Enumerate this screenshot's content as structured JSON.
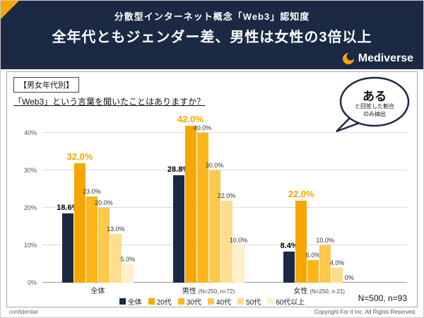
{
  "colors": {
    "header_bg": "#1b2944",
    "accent_orange": "#f7a600",
    "panel_border": "#a6a6a6"
  },
  "header": {
    "subtitle": "分散型インターネット概念「Web3」認知度",
    "title": "全年代ともジェンダー差、男性は女性の3倍以上",
    "brand": "Mediverse"
  },
  "content": {
    "category_box": "【男女年代別】",
    "question": "「Web3」という言葉を聞いたことはありますか？",
    "callout": {
      "big": "ある",
      "small1": "と回答した割合",
      "small2": "のみ抽出"
    },
    "sample_note": "N=500, n=93"
  },
  "chart_data": {
    "type": "bar",
    "title": "「Web3」という言葉を聞いたことはありますか？",
    "annotation": "ある と回答した割合のみ抽出",
    "categories": [
      "全体",
      "男性",
      "女性"
    ],
    "group_sublabels": [
      "",
      "(N=250, n=72)",
      "(N=250, n-21)"
    ],
    "series": [
      {
        "name": "全体",
        "color": "#1b2944",
        "values": [
          18.6,
          28.8,
          8.4
        ]
      },
      {
        "name": "20代",
        "color": "#f7a600",
        "values": [
          32.0,
          42.0,
          22.0
        ]
      },
      {
        "name": "30代",
        "color": "#fbb61c",
        "values": [
          23.0,
          40.0,
          6.0
        ]
      },
      {
        "name": "40代",
        "color": "#fcc94e",
        "values": [
          20.0,
          30.0,
          10.0
        ]
      },
      {
        "name": "50代",
        "color": "#fedd8f",
        "values": [
          13.0,
          22.0,
          4.0
        ]
      },
      {
        "name": "60代以上",
        "color": "#fff0c8",
        "values": [
          5.0,
          10.0,
          0
        ]
      }
    ],
    "value_labels": [
      [
        "18.6%",
        "32.0%",
        "23.0%",
        "20.0%",
        "13.0%",
        "5.0%"
      ],
      [
        "28.8%",
        "42.0%",
        "40.0%",
        "30.0%",
        "22.0%",
        "10.0%"
      ],
      [
        "8.4%",
        "22.0%",
        "6.0%",
        "10.0%",
        "4.0%",
        "0%"
      ]
    ],
    "ylim": [
      0,
      45
    ],
    "gridlines": [
      0,
      10,
      20,
      30,
      40
    ],
    "bold_series_index": 0,
    "highlight_series_index": 1,
    "grid": true,
    "legend_position": "bottom"
  },
  "footer": {
    "left": "confidential",
    "right": "Copyright For it Inc. All Rights Reserved."
  }
}
